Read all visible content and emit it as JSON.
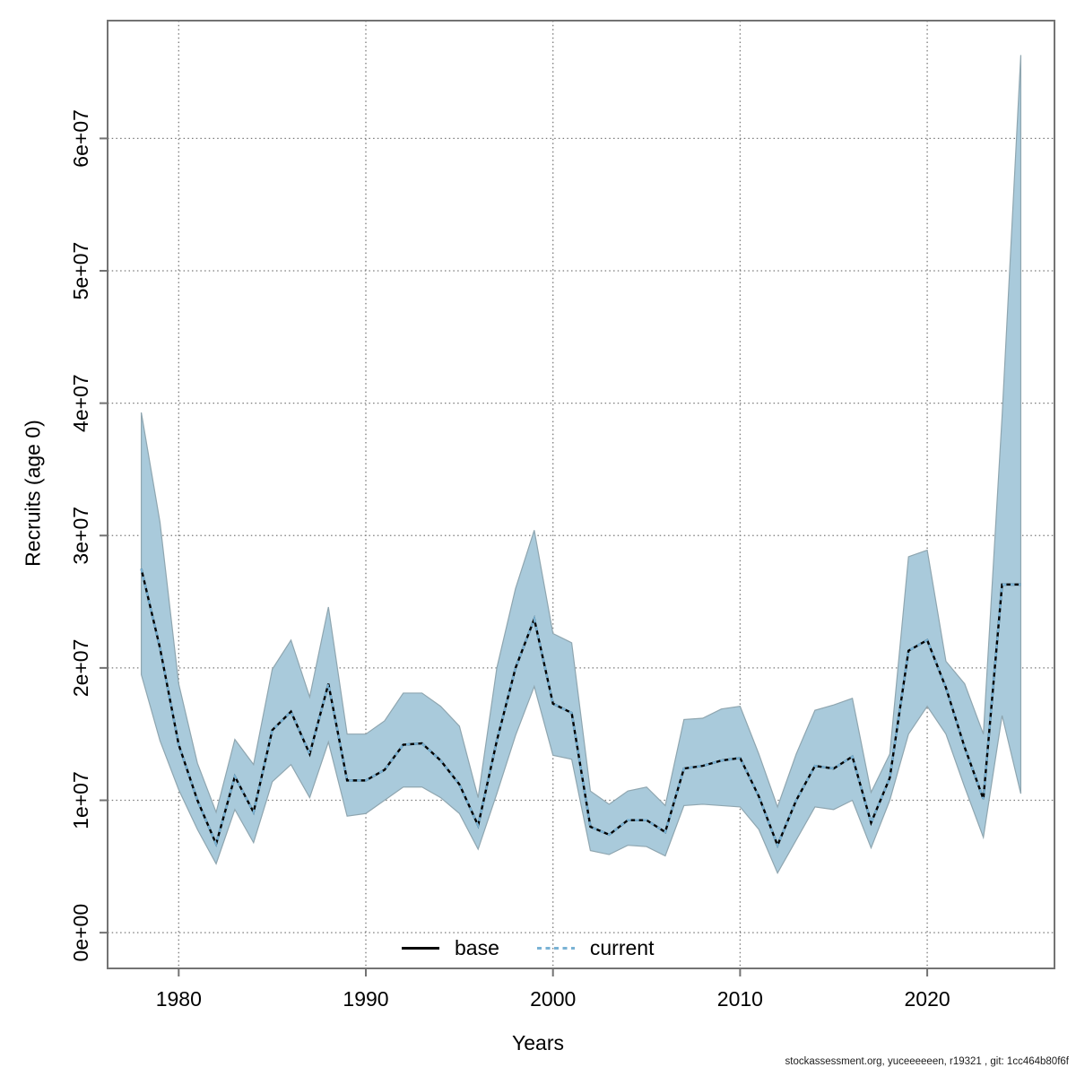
{
  "figure": {
    "xlabel": "Years",
    "ylabel": "Recruits (age 0)",
    "caption": "stockassessment.org, yuceeeeeen, r19321 , git: 1cc464b80f6f"
  },
  "chart_data": {
    "type": "line",
    "title": "",
    "xlabel": "Years",
    "ylabel": "Recruits (age 0)",
    "grid": true,
    "legend_position": "bottom-center-inside",
    "x_ticks": [
      1980,
      1990,
      2000,
      2010,
      2020
    ],
    "y_tick_labels": [
      "0e+00",
      "1e+07",
      "2e+07",
      "3e+07",
      "4e+07",
      "5e+07",
      "6e+07"
    ],
    "xlim": [
      1976.2,
      2026.8
    ],
    "ylim": [
      -2700000,
      68900000
    ],
    "colors": {
      "band_fill": "#a9cadb",
      "band_edge": "#8fa6b0",
      "base_line": "#000000",
      "current_line": "#79b2d4",
      "grid": "#7a7a7a",
      "box": "#737373"
    },
    "series": [
      {
        "name": "base",
        "style": "solid",
        "color": "#000000"
      },
      {
        "name": "current",
        "style": "dotted",
        "color": "#79b2d4"
      }
    ],
    "years": [
      1978,
      1979,
      1980,
      1981,
      1982,
      1983,
      1984,
      1985,
      1986,
      1987,
      1988,
      1989,
      1990,
      1991,
      1992,
      1993,
      1994,
      1995,
      1996,
      1997,
      1998,
      1999,
      2000,
      2001,
      2002,
      2003,
      2004,
      2005,
      2006,
      2007,
      2008,
      2009,
      2010,
      2011,
      2012,
      2013,
      2014,
      2015,
      2016,
      2017,
      2018,
      2019,
      2020,
      2021,
      2022,
      2023,
      2024,
      2025
    ],
    "mean": [
      27500000,
      21500000,
      14200000,
      10000000,
      6700000,
      11800000,
      9100000,
      15300000,
      16700000,
      13500000,
      18800000,
      11500000,
      11500000,
      12300000,
      14200000,
      14300000,
      13000000,
      11200000,
      8100000,
      14500000,
      20000000,
      23700000,
      17300000,
      16600000,
      8000000,
      7400000,
      8500000,
      8500000,
      7600000,
      12400000,
      12600000,
      13000000,
      13200000,
      10300000,
      6600000,
      10000000,
      12600000,
      12400000,
      13300000,
      8300000,
      11700000,
      21300000,
      22100000,
      18500000,
      14000000,
      10100000,
      26300000,
      26300000
    ],
    "ci_low": [
      19500000,
      14500000,
      10800000,
      7800000,
      5200000,
      9300000,
      6800000,
      11400000,
      12700000,
      10200000,
      14400000,
      8800000,
      9000000,
      10000000,
      11000000,
      11000000,
      10200000,
      9000000,
      6300000,
      10500000,
      14900000,
      18600000,
      13400000,
      13100000,
      6200000,
      5900000,
      6600000,
      6500000,
      5800000,
      9600000,
      9700000,
      9600000,
      9500000,
      7800000,
      4500000,
      7000000,
      9500000,
      9300000,
      10000000,
      6400000,
      10000000,
      15000000,
      17100000,
      15000000,
      11000000,
      7200000,
      16400000,
      10500000
    ],
    "ci_high": [
      39300000,
      31000000,
      18800000,
      12800000,
      9100000,
      14600000,
      12700000,
      19900000,
      22100000,
      17800000,
      24600000,
      15000000,
      15000000,
      16000000,
      18100000,
      18100000,
      17100000,
      15600000,
      10200000,
      20000000,
      26000000,
      30400000,
      22600000,
      21900000,
      10700000,
      9700000,
      10700000,
      11000000,
      9600000,
      16100000,
      16200000,
      16900000,
      17100000,
      13500000,
      9500000,
      13500000,
      16800000,
      17200000,
      17700000,
      10600000,
      13500000,
      28400000,
      28900000,
      20500000,
      18800000,
      15000000,
      39000000,
      66300000
    ]
  }
}
